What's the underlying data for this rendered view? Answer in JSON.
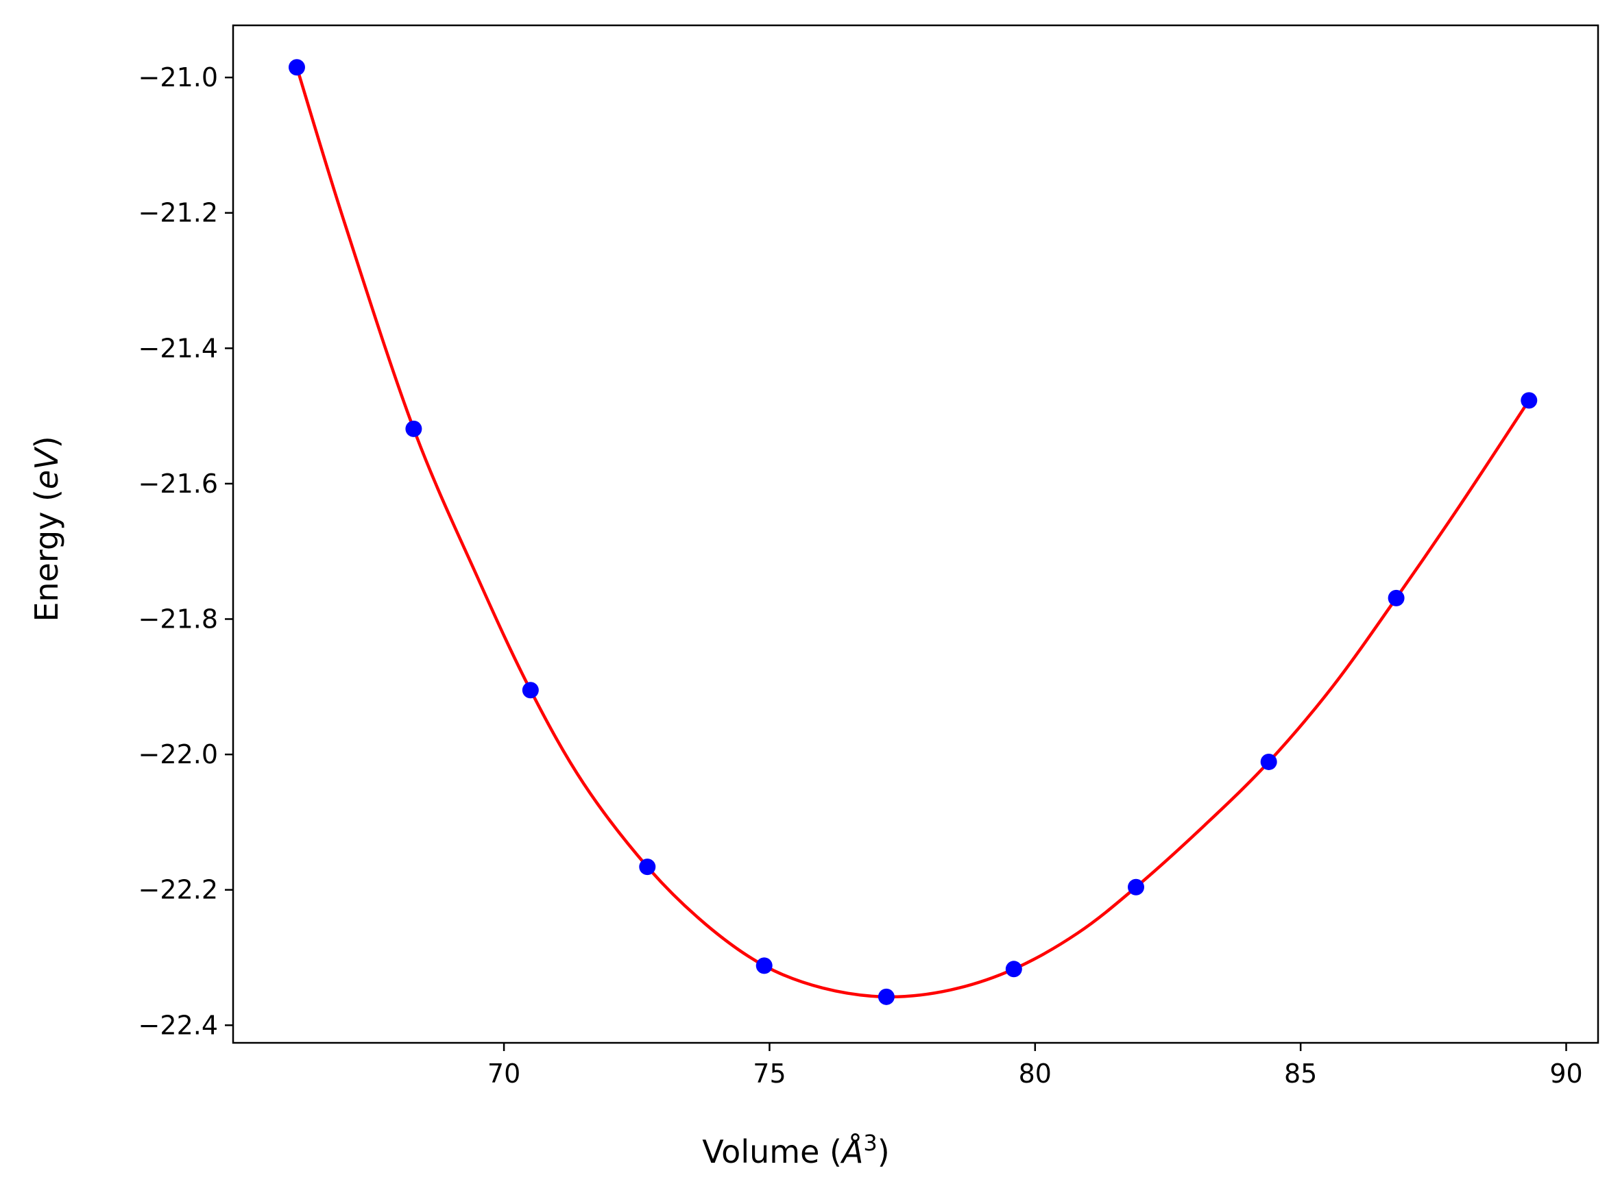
{
  "chart_data": {
    "type": "scatter",
    "title": "",
    "xlabel": {
      "prefix": "Volume (",
      "symbol": "Å",
      "power": "3",
      "suffix": ")"
    },
    "ylabel": {
      "prefix": "Energy (",
      "unit": "eV",
      "suffix": ")"
    },
    "xlim": [
      64.9,
      90.6
    ],
    "ylim": [
      -22.426,
      -20.923
    ],
    "xticks": [
      70,
      75,
      80,
      85,
      90
    ],
    "xtick_labels": [
      "70",
      "75",
      "80",
      "85",
      "90"
    ],
    "yticks": [
      -21.0,
      -21.2,
      -21.4,
      -21.6,
      -21.8,
      -22.0,
      -22.2,
      -22.4
    ],
    "ytick_labels": [
      "−21.0",
      "−21.2",
      "−21.4",
      "−21.6",
      "−21.8",
      "−22.0",
      "−22.2",
      "−22.4"
    ],
    "grid": false,
    "legend": "none",
    "series": [
      {
        "kind": "points",
        "color": "#0000ff",
        "x": [
          66.1,
          68.3,
          70.5,
          72.7,
          74.9,
          77.2,
          79.6,
          81.9,
          84.4,
          86.8,
          89.3
        ],
        "y": [
          -20.985,
          -21.519,
          -21.905,
          -22.166,
          -22.312,
          -22.358,
          -22.317,
          -22.196,
          -22.011,
          -21.769,
          -21.477
        ]
      },
      {
        "kind": "fit-curve",
        "color": "#ff0000",
        "x": [
          66.1,
          67.0,
          68.3,
          69.5,
          70.5,
          71.5,
          72.7,
          73.8,
          74.9,
          76.0,
          77.2,
          78.4,
          79.6,
          80.8,
          81.9,
          83.2,
          84.4,
          85.6,
          86.8,
          88.0,
          89.3
        ],
        "y": [
          -20.985,
          -21.215,
          -21.519,
          -21.738,
          -21.905,
          -22.043,
          -22.166,
          -22.251,
          -22.312,
          -22.345,
          -22.358,
          -22.348,
          -22.317,
          -22.264,
          -22.196,
          -22.104,
          -22.011,
          -21.9,
          -21.769,
          -21.632,
          -21.477
        ]
      }
    ]
  }
}
